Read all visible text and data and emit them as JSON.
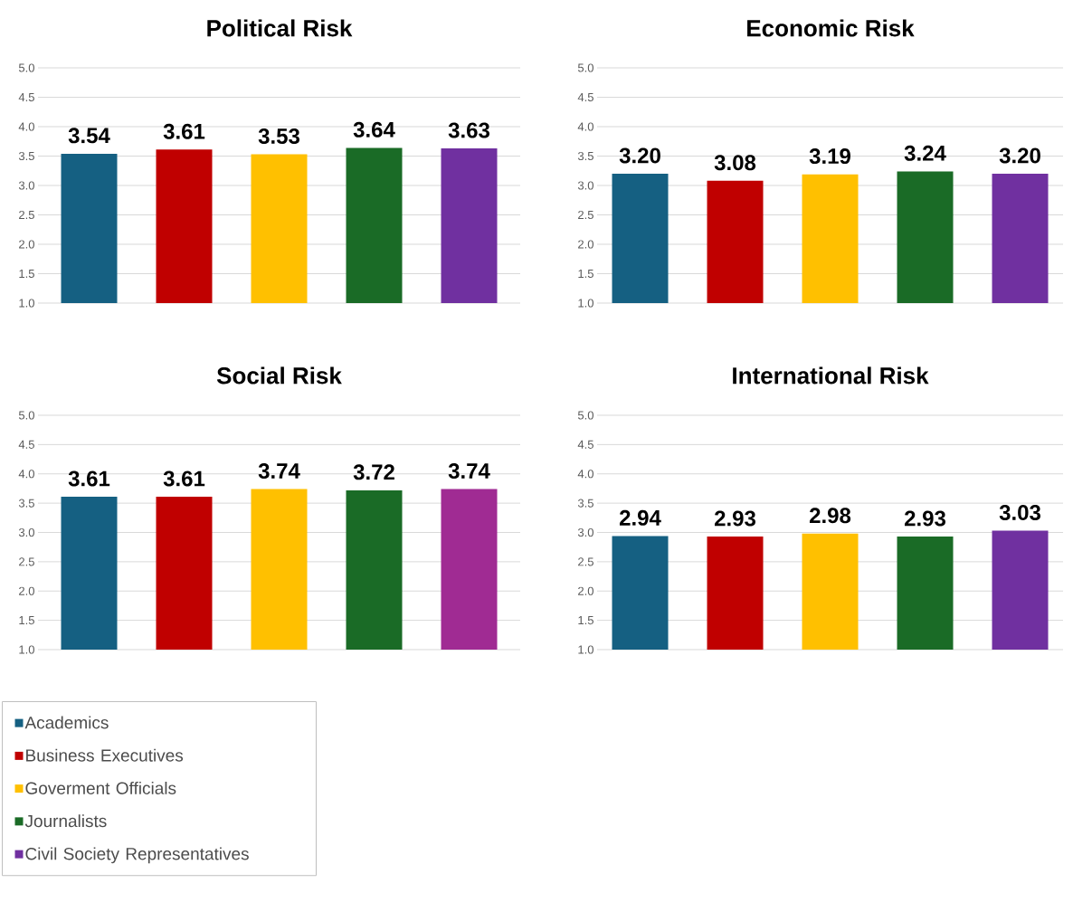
{
  "chart_data": [
    {
      "type": "bar",
      "title": "Political Risk",
      "categories": [
        null
      ],
      "ylim": [
        1,
        5
      ],
      "yticks": [
        {
          "value": 1,
          "label": "1.0"
        },
        {
          "value": 1.5,
          "label": "1.5"
        },
        {
          "value": 2,
          "label": "2.0"
        },
        {
          "value": 2.5,
          "label": "2.5"
        },
        {
          "value": 3,
          "label": "3.0"
        },
        {
          "value": 3.5,
          "label": "3.5"
        },
        {
          "value": 4,
          "label": "4.0"
        },
        {
          "value": 4.5,
          "label": "4.5"
        },
        {
          "value": 5,
          "label": "5.0"
        }
      ],
      "grid": "y",
      "legend": "bottom left",
      "series": [
        {
          "name": "Academics",
          "color": "#156082",
          "values": [
            3.54
          ],
          "value_labels": [
            "3.54"
          ]
        },
        {
          "name": "Business Executives",
          "color": "#c00000",
          "values": [
            3.61
          ],
          "value_labels": [
            "3.61"
          ]
        },
        {
          "name": "Goverment Officials",
          "color": "#ffc000",
          "values": [
            3.53
          ],
          "value_labels": [
            "3.53"
          ]
        },
        {
          "name": "Journalists",
          "color": "#1a6b26",
          "values": [
            3.64
          ],
          "value_labels": [
            "3.64"
          ]
        },
        {
          "name": "Civil Society Representatives",
          "color": "#7030a0",
          "values": [
            3.63
          ],
          "value_labels": [
            "3.63"
          ]
        }
      ]
    },
    {
      "type": "bar",
      "title": "Economic Risk",
      "categories": [
        null
      ],
      "ylim": [
        1,
        5
      ],
      "yticks": [
        {
          "value": 1,
          "label": "1.0"
        },
        {
          "value": 1.5,
          "label": "1.5"
        },
        {
          "value": 2,
          "label": "2.0"
        },
        {
          "value": 2.5,
          "label": "2.5"
        },
        {
          "value": 3,
          "label": "3.0"
        },
        {
          "value": 3.5,
          "label": "3.5"
        },
        {
          "value": 4,
          "label": "4.0"
        },
        {
          "value": 4.5,
          "label": "4.5"
        },
        {
          "value": 5,
          "label": "5.0"
        }
      ],
      "grid": "y",
      "series": [
        {
          "color": "#156082",
          "values": [
            3.2
          ],
          "value_labels": [
            "3.20"
          ]
        },
        {
          "color": "#c00000",
          "values": [
            3.08
          ],
          "value_labels": [
            "3.08"
          ]
        },
        {
          "color": "#ffc000",
          "values": [
            3.19
          ],
          "value_labels": [
            "3.19"
          ]
        },
        {
          "color": "#1a6b26",
          "values": [
            3.24
          ],
          "value_labels": [
            "3.24"
          ]
        },
        {
          "color": "#7030a0",
          "values": [
            3.2
          ],
          "value_labels": [
            "3.20"
          ]
        }
      ]
    },
    {
      "type": "bar",
      "title": "Social Risk",
      "categories": [
        null
      ],
      "ylim": [
        1,
        5
      ],
      "yticks": [
        {
          "value": 1,
          "label": "1.0"
        },
        {
          "value": 1.5,
          "label": "1.5"
        },
        {
          "value": 2,
          "label": "2.0"
        },
        {
          "value": 2.5,
          "label": "2.5"
        },
        {
          "value": 3,
          "label": "3.0"
        },
        {
          "value": 3.5,
          "label": "3.5"
        },
        {
          "value": 4,
          "label": "4.0"
        },
        {
          "value": 4.5,
          "label": "4.5"
        },
        {
          "value": 5,
          "label": "5.0"
        }
      ],
      "grid": "y",
      "series": [
        {
          "color": "#156082",
          "values": [
            3.61
          ],
          "value_labels": [
            "3.61"
          ]
        },
        {
          "color": "#c00000",
          "values": [
            3.61
          ],
          "value_labels": [
            "3.61"
          ]
        },
        {
          "color": "#ffc000",
          "values": [
            3.74
          ],
          "value_labels": [
            "3.74"
          ]
        },
        {
          "color": "#1a6b26",
          "values": [
            3.72
          ],
          "value_labels": [
            "3.72"
          ]
        },
        {
          "color": "#a02b93",
          "values": [
            3.74
          ],
          "value_labels": [
            "3.74"
          ]
        }
      ]
    },
    {
      "type": "bar",
      "title": "International Risk",
      "categories": [
        null
      ],
      "ylim": [
        1,
        5
      ],
      "yticks": [
        {
          "value": 1,
          "label": "1.0"
        },
        {
          "value": 1.5,
          "label": "1.5"
        },
        {
          "value": 2,
          "label": "2.0"
        },
        {
          "value": 2.5,
          "label": "2.5"
        },
        {
          "value": 3,
          "label": "3.0"
        },
        {
          "value": 3.5,
          "label": "3.5"
        },
        {
          "value": 4,
          "label": "4.0"
        },
        {
          "value": 4.5,
          "label": "4.5"
        },
        {
          "value": 5,
          "label": "5.0"
        }
      ],
      "grid": "y",
      "series": [
        {
          "color": "#156082",
          "values": [
            2.94
          ],
          "value_labels": [
            "2.94"
          ]
        },
        {
          "color": "#c00000",
          "values": [
            2.93
          ],
          "value_labels": [
            "2.93"
          ]
        },
        {
          "color": "#ffc000",
          "values": [
            2.98
          ],
          "value_labels": [
            "2.98"
          ]
        },
        {
          "color": "#1a6b26",
          "values": [
            2.93
          ],
          "value_labels": [
            "2.93"
          ]
        },
        {
          "color": "#7030a0",
          "values": [
            3.03
          ],
          "value_labels": [
            "3.03"
          ]
        }
      ]
    }
  ]
}
